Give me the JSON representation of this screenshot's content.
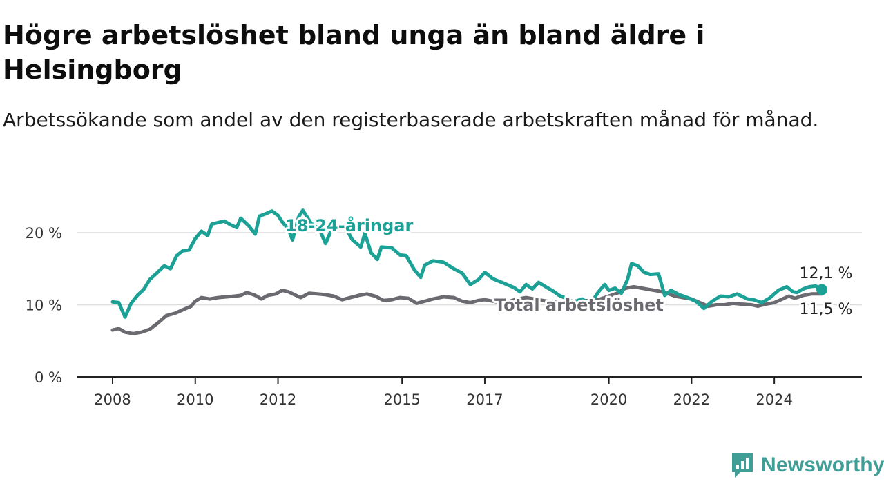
{
  "title": "Högre arbetslöshet bland unga än bland äldre i Helsingborg",
  "subtitle": "Arbetssökande som andel av den registerbaserade arbetskraften månad för månad.",
  "brand": {
    "name": "Newsworthy",
    "icon": "newsworthy-logo-icon"
  },
  "colors": {
    "youth": "#1ba195",
    "total": "#6b6a70",
    "grid": "#dcdcdc",
    "axis": "#222222"
  },
  "chart_data": {
    "type": "line",
    "title": "Högre arbetslöshet bland unga än bland äldre i Helsingborg",
    "subtitle": "Arbetssökande som andel av den registerbaserade arbetskraften månad för månad.",
    "xlabel": "",
    "ylabel": "",
    "xlim": [
      2008.0,
      2025.25
    ],
    "ylim": [
      0,
      20
    ],
    "x_ticks": [
      {
        "value": 2008,
        "label": "2008"
      },
      {
        "value": 2010,
        "label": "2010"
      },
      {
        "value": 2012,
        "label": "2012"
      },
      {
        "value": 2015,
        "label": "2015"
      },
      {
        "value": 2017,
        "label": "2017"
      },
      {
        "value": 2020,
        "label": "2020"
      },
      {
        "value": 2022,
        "label": "2022"
      },
      {
        "value": 2024,
        "label": "2024"
      }
    ],
    "y_ticks": [
      {
        "value": 0,
        "label": "0 %"
      },
      {
        "value": 10,
        "label": "10 %"
      },
      {
        "value": 20,
        "label": "20 %"
      }
    ],
    "grid": true,
    "legend": "inline labels",
    "series": [
      {
        "name": "18-24-åringar",
        "end_label": "12,1 %",
        "points": [
          [
            2008.0,
            10.4
          ],
          [
            2008.15,
            10.3
          ],
          [
            2008.3,
            8.3
          ],
          [
            2008.45,
            10.2
          ],
          [
            2008.6,
            11.3
          ],
          [
            2008.75,
            12.1
          ],
          [
            2008.9,
            13.5
          ],
          [
            2009.05,
            14.3
          ],
          [
            2009.25,
            15.4
          ],
          [
            2009.4,
            15.0
          ],
          [
            2009.55,
            16.8
          ],
          [
            2009.7,
            17.5
          ],
          [
            2009.85,
            17.6
          ],
          [
            2010.0,
            19.2
          ],
          [
            2010.15,
            20.2
          ],
          [
            2010.3,
            19.6
          ],
          [
            2010.4,
            21.2
          ],
          [
            2010.55,
            21.4
          ],
          [
            2010.7,
            21.6
          ],
          [
            2010.85,
            21.1
          ],
          [
            2011.0,
            20.7
          ],
          [
            2011.1,
            22.0
          ],
          [
            2011.3,
            20.9
          ],
          [
            2011.45,
            19.8
          ],
          [
            2011.55,
            22.3
          ],
          [
            2011.7,
            22.6
          ],
          [
            2011.85,
            23.0
          ],
          [
            2012.0,
            22.4
          ],
          [
            2012.1,
            21.5
          ],
          [
            2012.25,
            20.5
          ],
          [
            2012.35,
            19.0
          ],
          [
            2012.5,
            22.2
          ],
          [
            2012.6,
            23.1
          ],
          [
            2012.8,
            21.3
          ],
          [
            2013.0,
            20.5
          ],
          [
            2013.15,
            18.5
          ],
          [
            2013.3,
            20.5
          ],
          [
            2013.6,
            21.0
          ],
          [
            2013.8,
            19.0
          ],
          [
            2014.0,
            18.0
          ],
          [
            2014.1,
            19.9
          ],
          [
            2014.25,
            17.2
          ],
          [
            2014.4,
            16.3
          ],
          [
            2014.5,
            18.0
          ],
          [
            2014.75,
            17.9
          ],
          [
            2014.95,
            16.9
          ],
          [
            2015.1,
            16.8
          ],
          [
            2015.3,
            14.8
          ],
          [
            2015.45,
            13.8
          ],
          [
            2015.55,
            15.5
          ],
          [
            2015.75,
            16.1
          ],
          [
            2016.0,
            15.9
          ],
          [
            2016.25,
            15.0
          ],
          [
            2016.45,
            14.4
          ],
          [
            2016.65,
            12.8
          ],
          [
            2016.85,
            13.5
          ],
          [
            2017.0,
            14.5
          ],
          [
            2017.2,
            13.6
          ],
          [
            2017.45,
            13.0
          ],
          [
            2017.7,
            12.4
          ],
          [
            2017.85,
            11.8
          ],
          [
            2018.0,
            12.8
          ],
          [
            2018.15,
            12.2
          ],
          [
            2018.3,
            13.1
          ],
          [
            2018.5,
            12.4
          ],
          [
            2018.65,
            11.9
          ],
          [
            2018.8,
            11.3
          ],
          [
            2019.0,
            10.8
          ],
          [
            2019.15,
            10.4
          ],
          [
            2019.35,
            10.8
          ],
          [
            2019.55,
            10.1
          ],
          [
            2019.75,
            11.8
          ],
          [
            2019.9,
            12.8
          ],
          [
            2020.0,
            12.0
          ],
          [
            2020.15,
            12.3
          ],
          [
            2020.3,
            11.6
          ],
          [
            2020.45,
            13.5
          ],
          [
            2020.55,
            15.7
          ],
          [
            2020.7,
            15.4
          ],
          [
            2020.85,
            14.5
          ],
          [
            2021.0,
            14.2
          ],
          [
            2021.2,
            14.3
          ],
          [
            2021.35,
            11.3
          ],
          [
            2021.5,
            12.0
          ],
          [
            2021.7,
            11.4
          ],
          [
            2021.9,
            11.0
          ],
          [
            2022.1,
            10.5
          ],
          [
            2022.3,
            9.5
          ],
          [
            2022.5,
            10.5
          ],
          [
            2022.7,
            11.2
          ],
          [
            2022.9,
            11.1
          ],
          [
            2023.1,
            11.5
          ],
          [
            2023.35,
            10.8
          ],
          [
            2023.5,
            10.7
          ],
          [
            2023.7,
            10.3
          ],
          [
            2023.9,
            11.0
          ],
          [
            2024.1,
            12.0
          ],
          [
            2024.3,
            12.5
          ],
          [
            2024.45,
            11.8
          ],
          [
            2024.55,
            11.7
          ],
          [
            2024.7,
            12.2
          ],
          [
            2024.85,
            12.5
          ],
          [
            2025.0,
            12.6
          ],
          [
            2025.15,
            12.1
          ]
        ]
      },
      {
        "name": "Total arbetslöshet",
        "end_label": "11,5 %",
        "points": [
          [
            2008.0,
            6.5
          ],
          [
            2008.15,
            6.7
          ],
          [
            2008.3,
            6.2
          ],
          [
            2008.5,
            6.0
          ],
          [
            2008.7,
            6.2
          ],
          [
            2008.9,
            6.6
          ],
          [
            2009.1,
            7.5
          ],
          [
            2009.3,
            8.5
          ],
          [
            2009.5,
            8.8
          ],
          [
            2009.7,
            9.3
          ],
          [
            2009.9,
            9.8
          ],
          [
            2010.0,
            10.5
          ],
          [
            2010.15,
            11.0
          ],
          [
            2010.35,
            10.8
          ],
          [
            2010.55,
            11.0
          ],
          [
            2010.75,
            11.1
          ],
          [
            2010.95,
            11.2
          ],
          [
            2011.1,
            11.3
          ],
          [
            2011.25,
            11.7
          ],
          [
            2011.45,
            11.3
          ],
          [
            2011.6,
            10.8
          ],
          [
            2011.75,
            11.3
          ],
          [
            2011.95,
            11.5
          ],
          [
            2012.1,
            12.0
          ],
          [
            2012.25,
            11.8
          ],
          [
            2012.4,
            11.4
          ],
          [
            2012.55,
            11.0
          ],
          [
            2012.75,
            11.6
          ],
          [
            2012.95,
            11.5
          ],
          [
            2013.15,
            11.4
          ],
          [
            2013.35,
            11.2
          ],
          [
            2013.55,
            10.7
          ],
          [
            2013.75,
            11.0
          ],
          [
            2013.95,
            11.3
          ],
          [
            2014.15,
            11.5
          ],
          [
            2014.35,
            11.2
          ],
          [
            2014.55,
            10.6
          ],
          [
            2014.75,
            10.7
          ],
          [
            2014.95,
            11.0
          ],
          [
            2015.15,
            10.9
          ],
          [
            2015.35,
            10.2
          ],
          [
            2015.55,
            10.5
          ],
          [
            2015.75,
            10.8
          ],
          [
            2016.0,
            11.1
          ],
          [
            2016.25,
            11.0
          ],
          [
            2016.45,
            10.5
          ],
          [
            2016.65,
            10.3
          ],
          [
            2016.85,
            10.6
          ],
          [
            2017.0,
            10.7
          ],
          [
            2017.2,
            10.5
          ],
          [
            2017.4,
            10.3
          ],
          [
            2017.6,
            10.5
          ],
          [
            2017.8,
            10.8
          ],
          [
            2018.0,
            11.0
          ],
          [
            2018.3,
            10.7
          ],
          [
            2018.6,
            10.4
          ],
          [
            2018.9,
            10.3
          ],
          [
            2019.2,
            10.5
          ],
          [
            2019.5,
            10.6
          ],
          [
            2019.8,
            10.8
          ],
          [
            2020.0,
            11.2
          ],
          [
            2020.2,
            11.6
          ],
          [
            2020.4,
            12.3
          ],
          [
            2020.6,
            12.5
          ],
          [
            2020.8,
            12.3
          ],
          [
            2021.0,
            12.1
          ],
          [
            2021.2,
            11.9
          ],
          [
            2021.4,
            11.6
          ],
          [
            2021.6,
            11.2
          ],
          [
            2021.8,
            11.0
          ],
          [
            2022.0,
            10.8
          ],
          [
            2022.2,
            10.3
          ],
          [
            2022.4,
            9.8
          ],
          [
            2022.6,
            10.0
          ],
          [
            2022.8,
            10.0
          ],
          [
            2023.0,
            10.2
          ],
          [
            2023.2,
            10.1
          ],
          [
            2023.45,
            10.0
          ],
          [
            2023.6,
            9.8
          ],
          [
            2023.8,
            10.1
          ],
          [
            2024.0,
            10.3
          ],
          [
            2024.2,
            10.8
          ],
          [
            2024.35,
            11.2
          ],
          [
            2024.5,
            10.9
          ],
          [
            2024.7,
            11.3
          ],
          [
            2024.9,
            11.5
          ],
          [
            2025.15,
            11.5
          ]
        ]
      }
    ]
  }
}
